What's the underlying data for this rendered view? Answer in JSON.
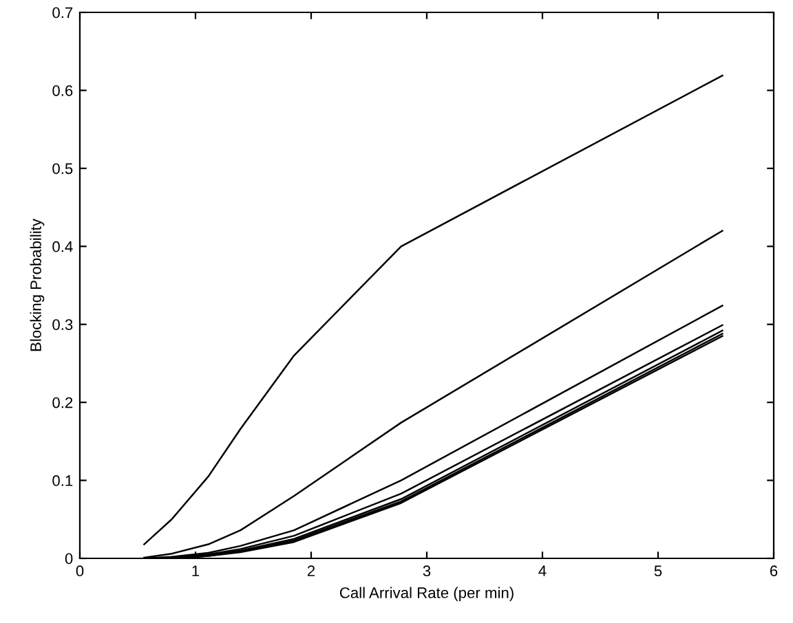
{
  "chart_data": {
    "type": "line",
    "xlabel": "Call Arrival Rate (per min)",
    "ylabel": "Blocking Probability",
    "xlim": [
      0,
      6
    ],
    "ylim": [
      0,
      0.7
    ],
    "xticks": [
      0,
      1,
      2,
      3,
      4,
      5,
      6
    ],
    "yticks": [
      0,
      0.1,
      0.2,
      0.3,
      0.4,
      0.5,
      0.6,
      0.7
    ],
    "x": [
      0.556,
      0.794,
      1.111,
      1.389,
      1.852,
      2.778,
      5.556
    ],
    "grid": false,
    "legend": false,
    "marker": "none",
    "line_style": "solid",
    "series": [
      {
        "color": "#000000",
        "values": [
          0.018,
          0.05,
          0.105,
          0.166,
          0.26,
          0.4,
          0.619
        ]
      },
      {
        "color": "#000000",
        "values": [
          0.001,
          0.006,
          0.018,
          0.036,
          0.08,
          0.174,
          0.42
        ]
      },
      {
        "color": "#000000",
        "values": [
          0.0,
          0.002,
          0.007,
          0.016,
          0.036,
          0.1,
          0.324
        ]
      },
      {
        "color": "#000000",
        "values": [
          0.0,
          0.001,
          0.005,
          0.012,
          0.029,
          0.083,
          0.299
        ]
      },
      {
        "color": "#000000",
        "values": [
          0.0,
          0.001,
          0.004,
          0.01,
          0.025,
          0.076,
          0.292
        ]
      },
      {
        "color": "#000000",
        "values": [
          0.0,
          0.0,
          0.003,
          0.009,
          0.023,
          0.073,
          0.288
        ]
      },
      {
        "color": "#000000",
        "values": [
          0.0,
          0.0,
          0.003,
          0.008,
          0.021,
          0.071,
          0.285
        ]
      }
    ]
  }
}
